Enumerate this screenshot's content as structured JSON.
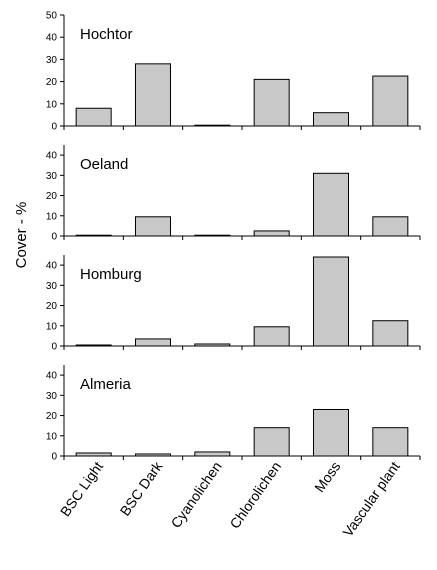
{
  "chart_data": {
    "type": "bar",
    "ylabel": "Cover  -  %",
    "categories": [
      "BSC Light",
      "BSC Dark",
      "Cyanolichen",
      "Chlorolichen",
      "Moss",
      "Vascular plant"
    ],
    "panels": [
      {
        "title": "Hochtor",
        "ylim": [
          0,
          50
        ],
        "yticks": [
          0,
          10,
          20,
          30,
          40,
          50
        ],
        "values": [
          8,
          28,
          0.3,
          21,
          6,
          22.5
        ]
      },
      {
        "title": "Oeland",
        "ylim": [
          0,
          45
        ],
        "yticks": [
          0,
          10,
          20,
          30,
          40
        ],
        "values": [
          0.3,
          9.5,
          0.2,
          2.5,
          31,
          9.5
        ]
      },
      {
        "title": "Homburg",
        "ylim": [
          0,
          45
        ],
        "yticks": [
          0,
          10,
          20,
          30,
          40
        ],
        "values": [
          0.5,
          3.5,
          1,
          9.5,
          44,
          12.5
        ]
      },
      {
        "title": "Almeria",
        "ylim": [
          0,
          45
        ],
        "yticks": [
          0,
          10,
          20,
          30,
          40
        ],
        "values": [
          1.5,
          1,
          2,
          14,
          23,
          14
        ]
      }
    ],
    "colors": {
      "bar_fill": "#c8c8c8",
      "bar_stroke": "#000000"
    }
  }
}
